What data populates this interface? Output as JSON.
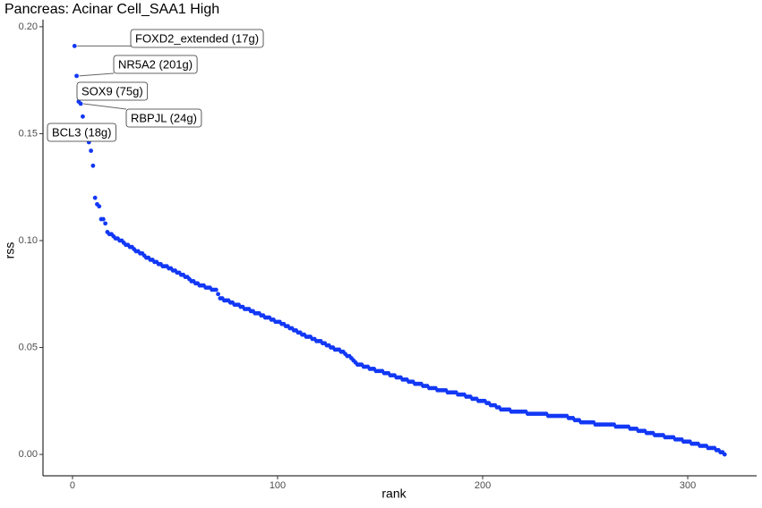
{
  "chart_data": {
    "type": "scatter",
    "title": "Pancreas: Acinar Cell_SAA1 High",
    "x_label": "rank",
    "y_label": "rss",
    "color": "#1238f5",
    "xlim": [
      -14.4,
      333.6
    ],
    "ylim": [
      -0.01,
      0.2033
    ],
    "xticks": [
      0,
      100,
      200,
      300
    ],
    "yticks": [
      {
        "value": 0,
        "label": "0.00"
      },
      0.05,
      {
        "value": 0.1,
        "label": "0.10"
      },
      0.15,
      {
        "value": 0.2,
        "label": "0.20"
      }
    ],
    "annotations": [
      "FOXD2_extended (17g)",
      "NR5A2 (201g)",
      "SOX9 (75g)",
      "RBPJL (24g)",
      "BCL3 (18g)"
    ],
    "x": [
      1,
      2,
      3,
      4,
      5,
      6,
      7,
      8,
      9,
      10,
      11,
      12,
      13,
      14,
      15,
      16,
      17,
      18,
      19,
      20,
      21,
      22,
      23,
      24,
      25,
      26,
      27,
      28,
      29,
      30,
      31,
      32,
      33,
      34,
      35,
      36,
      37,
      38,
      39,
      40,
      41,
      42,
      43,
      44,
      45,
      46,
      47,
      48,
      49,
      50,
      51,
      52,
      53,
      54,
      55,
      56,
      57,
      58,
      59,
      60,
      61,
      62,
      63,
      64,
      65,
      66,
      67,
      68,
      69,
      70,
      71,
      72,
      73,
      74,
      75,
      76,
      77,
      78,
      79,
      80,
      81,
      82,
      83,
      84,
      85,
      86,
      87,
      88,
      89,
      90,
      91,
      92,
      93,
      94,
      95,
      96,
      97,
      98,
      99,
      100,
      101,
      102,
      103,
      104,
      105,
      106,
      107,
      108,
      109,
      110,
      111,
      112,
      113,
      114,
      115,
      116,
      117,
      118,
      119,
      120,
      121,
      122,
      123,
      124,
      125,
      126,
      127,
      128,
      129,
      130,
      131,
      132,
      133,
      134,
      135,
      136,
      137,
      138,
      139,
      140,
      141,
      142,
      143,
      144,
      145,
      146,
      147,
      148,
      149,
      150,
      151,
      152,
      153,
      154,
      155,
      156,
      157,
      158,
      159,
      160,
      161,
      162,
      163,
      164,
      165,
      166,
      167,
      168,
      169,
      170,
      171,
      172,
      173,
      174,
      175,
      176,
      177,
      178,
      179,
      180,
      181,
      182,
      183,
      184,
      185,
      186,
      187,
      188,
      189,
      190,
      191,
      192,
      193,
      194,
      195,
      196,
      197,
      198,
      199,
      200,
      201,
      202,
      203,
      204,
      205,
      206,
      207,
      208,
      209,
      210,
      211,
      212,
      213,
      214,
      215,
      216,
      217,
      218,
      219,
      220,
      221,
      222,
      223,
      224,
      225,
      226,
      227,
      228,
      229,
      230,
      231,
      232,
      233,
      234,
      235,
      236,
      237,
      238,
      239,
      240,
      241,
      242,
      243,
      244,
      245,
      246,
      247,
      248,
      249,
      250,
      251,
      252,
      253,
      254,
      255,
      256,
      257,
      258,
      259,
      260,
      261,
      262,
      263,
      264,
      265,
      266,
      267,
      268,
      269,
      270,
      271,
      272,
      273,
      274,
      275,
      276,
      277,
      278,
      279,
      280,
      281,
      282,
      283,
      284,
      285,
      286,
      287,
      288,
      289,
      290,
      291,
      292,
      293,
      294,
      295,
      296,
      297,
      298,
      299,
      300,
      301,
      302,
      303,
      304,
      305,
      306,
      307,
      308,
      309,
      310,
      311,
      312,
      313,
      314,
      315,
      316,
      317,
      318
    ],
    "values": [
      0.191,
      0.177,
      0.165,
      0.164,
      0.158,
      0.152,
      0.15,
      0.146,
      0.142,
      0.135,
      0.12,
      0.117,
      0.116,
      0.11,
      0.11,
      0.108,
      0.104,
      0.103,
      0.103,
      0.102,
      0.101,
      0.101,
      0.1,
      0.1,
      0.099,
      0.098,
      0.098,
      0.097,
      0.097,
      0.096,
      0.095,
      0.095,
      0.094,
      0.094,
      0.093,
      0.092,
      0.092,
      0.091,
      0.091,
      0.09,
      0.09,
      0.089,
      0.089,
      0.088,
      0.088,
      0.088,
      0.087,
      0.087,
      0.086,
      0.086,
      0.085,
      0.085,
      0.084,
      0.084,
      0.083,
      0.083,
      0.082,
      0.081,
      0.081,
      0.08,
      0.08,
      0.079,
      0.079,
      0.079,
      0.078,
      0.078,
      0.078,
      0.077,
      0.077,
      0.077,
      0.075,
      0.073,
      0.073,
      0.072,
      0.072,
      0.072,
      0.071,
      0.071,
      0.07,
      0.07,
      0.07,
      0.069,
      0.069,
      0.068,
      0.068,
      0.068,
      0.067,
      0.067,
      0.066,
      0.066,
      0.066,
      0.065,
      0.065,
      0.064,
      0.064,
      0.064,
      0.063,
      0.063,
      0.062,
      0.062,
      0.062,
      0.061,
      0.061,
      0.06,
      0.06,
      0.059,
      0.059,
      0.058,
      0.058,
      0.057,
      0.057,
      0.056,
      0.056,
      0.055,
      0.055,
      0.055,
      0.054,
      0.054,
      0.053,
      0.053,
      0.053,
      0.052,
      0.052,
      0.051,
      0.051,
      0.05,
      0.05,
      0.049,
      0.049,
      0.049,
      0.048,
      0.048,
      0.047,
      0.046,
      0.046,
      0.045,
      0.044,
      0.043,
      0.042,
      0.042,
      0.042,
      0.041,
      0.041,
      0.041,
      0.04,
      0.04,
      0.04,
      0.039,
      0.039,
      0.039,
      0.039,
      0.038,
      0.038,
      0.038,
      0.037,
      0.037,
      0.037,
      0.036,
      0.036,
      0.036,
      0.035,
      0.035,
      0.035,
      0.034,
      0.034,
      0.034,
      0.033,
      0.033,
      0.033,
      0.033,
      0.032,
      0.032,
      0.032,
      0.031,
      0.031,
      0.031,
      0.031,
      0.03,
      0.03,
      0.03,
      0.03,
      0.03,
      0.029,
      0.029,
      0.029,
      0.029,
      0.029,
      0.028,
      0.028,
      0.028,
      0.028,
      0.027,
      0.027,
      0.027,
      0.026,
      0.026,
      0.026,
      0.025,
      0.025,
      0.025,
      0.025,
      0.024,
      0.024,
      0.023,
      0.023,
      0.023,
      0.022,
      0.022,
      0.021,
      0.021,
      0.021,
      0.021,
      0.021,
      0.02,
      0.02,
      0.02,
      0.02,
      0.02,
      0.02,
      0.02,
      0.02,
      0.019,
      0.019,
      0.019,
      0.019,
      0.019,
      0.019,
      0.019,
      0.019,
      0.019,
      0.019,
      0.018,
      0.018,
      0.018,
      0.018,
      0.018,
      0.018,
      0.018,
      0.018,
      0.018,
      0.018,
      0.017,
      0.017,
      0.017,
      0.016,
      0.016,
      0.016,
      0.015,
      0.015,
      0.015,
      0.015,
      0.015,
      0.015,
      0.015,
      0.014,
      0.014,
      0.014,
      0.014,
      0.014,
      0.014,
      0.014,
      0.014,
      0.014,
      0.014,
      0.013,
      0.013,
      0.013,
      0.013,
      0.013,
      0.013,
      0.013,
      0.012,
      0.012,
      0.012,
      0.012,
      0.011,
      0.011,
      0.011,
      0.011,
      0.01,
      0.01,
      0.01,
      0.01,
      0.009,
      0.009,
      0.009,
      0.009,
      0.009,
      0.008,
      0.008,
      0.008,
      0.008,
      0.008,
      0.007,
      0.007,
      0.007,
      0.007,
      0.006,
      0.006,
      0.006,
      0.006,
      0.005,
      0.005,
      0.005,
      0.005,
      0.004,
      0.004,
      0.004,
      0.004,
      0.003,
      0.003,
      0.003,
      0.003,
      0.002,
      0.002,
      0.001,
      0.001,
      0.0
    ]
  }
}
